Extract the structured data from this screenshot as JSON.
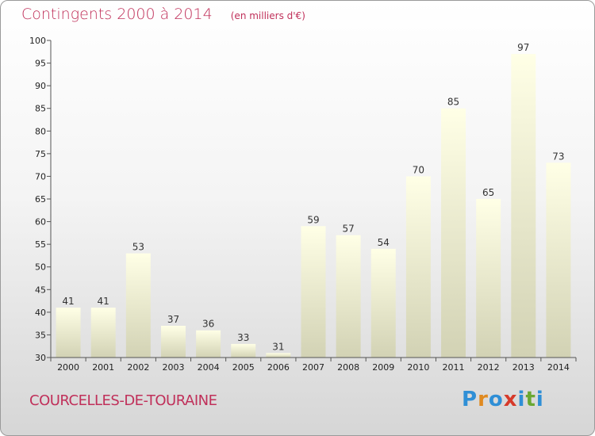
{
  "title": "Contingents 2000 à 2014",
  "subtitle": "(en milliers d'€)",
  "location": "COURCELLES-DE-TOURAINE",
  "logo": {
    "letters": [
      "P",
      "r",
      "o",
      "x",
      "i",
      "t",
      "i"
    ],
    "colors": [
      "#2f8fd6",
      "#e08a20",
      "#2f8fd6",
      "#d63a2a",
      "#2f8fd6",
      "#6aa832",
      "#2f8fd6"
    ]
  },
  "chart_data": {
    "type": "bar",
    "categories": [
      "2000",
      "2001",
      "2002",
      "2003",
      "2004",
      "2005",
      "2006",
      "2007",
      "2008",
      "2009",
      "2010",
      "2011",
      "2012",
      "2013",
      "2014"
    ],
    "values": [
      41,
      41,
      53,
      37,
      36,
      33,
      31,
      59,
      57,
      54,
      70,
      85,
      65,
      97,
      73
    ],
    "ylim": [
      30,
      100
    ],
    "yticks": [
      30,
      35,
      40,
      45,
      50,
      55,
      60,
      65,
      70,
      75,
      80,
      85,
      90,
      95,
      100
    ],
    "grid": false,
    "colors": {
      "bar_top": "#ffffe6",
      "bar_bottom": "#d2d2b4",
      "axis": "#555555"
    }
  }
}
